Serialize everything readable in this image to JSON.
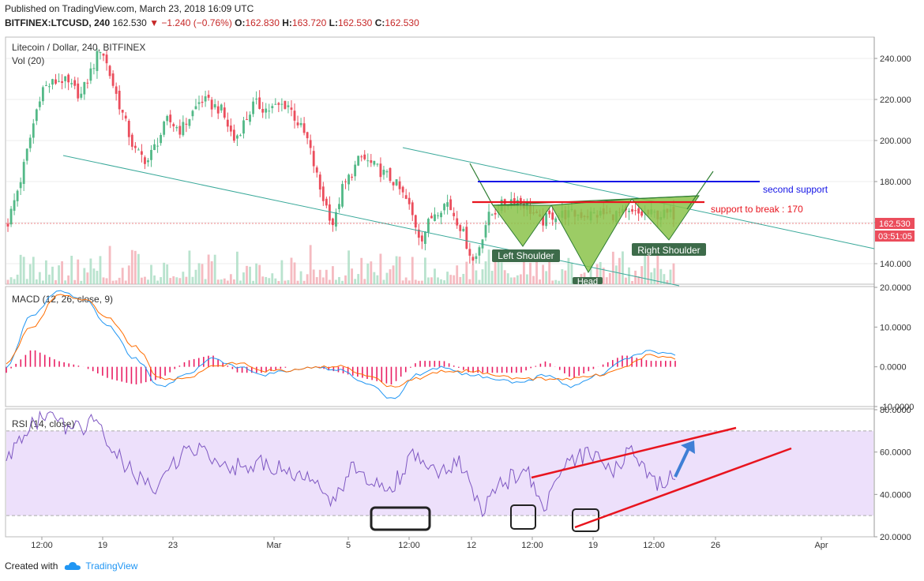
{
  "header": {
    "published": "Published on TradingView.com, March 23, 2018 16:09 UTC",
    "symbol": "BITFINEX:LTCUSD, 240",
    "last": "162.530",
    "change": "▼ −1.240 (−0.76%)",
    "o_label": "O:",
    "o_value": "162.830",
    "h_label": "H:",
    "h_value": "163.720",
    "l_label": "L:",
    "l_value": "162.530",
    "c_label": "C:",
    "c_value": "162.530"
  },
  "footer": {
    "created_with": "Created with",
    "brand": "TradingView"
  },
  "colors": {
    "up": "#53b987",
    "down": "#eb4d5c",
    "macd": "#2196f3",
    "signal": "#ff6d00",
    "hist": "#e91e63",
    "rsi": "#7e57c2",
    "support_red": "#e8141e",
    "support_blue": "#1414e6",
    "channel": "#3aa99a",
    "pattern_fill": "#8bc34a",
    "arrow": "#3f7fd6"
  },
  "chart_data": [
    {
      "type": "candlestick",
      "title": "Litecoin / Dollar, 240, BITFINEX",
      "subtitle": "Vol (20)",
      "ylim": [
        130,
        250
      ],
      "y_ticks": [
        "240.000",
        "220.000",
        "200.000",
        "180.000",
        "160.000",
        "140.000"
      ],
      "price_label": "162.530",
      "countdown": "03:51:05",
      "close_path": [
        [
          0,
          160
        ],
        [
          0.02,
          182
        ],
        [
          0.05,
          225
        ],
        [
          0.08,
          230
        ],
        [
          0.11,
          222
        ],
        [
          0.14,
          246
        ],
        [
          0.16,
          225
        ],
        [
          0.19,
          195
        ],
        [
          0.21,
          190
        ],
        [
          0.24,
          210
        ],
        [
          0.26,
          205
        ],
        [
          0.29,
          220
        ],
        [
          0.32,
          215
        ],
        [
          0.34,
          200
        ],
        [
          0.37,
          218
        ],
        [
          0.39,
          215
        ],
        [
          0.42,
          218
        ],
        [
          0.45,
          200
        ],
        [
          0.47,
          175
        ],
        [
          0.49,
          158
        ],
        [
          0.5,
          175
        ],
        [
          0.53,
          192
        ],
        [
          0.56,
          185
        ],
        [
          0.58,
          180
        ],
        [
          0.6,
          170
        ],
        [
          0.62,
          152
        ],
        [
          0.64,
          165
        ],
        [
          0.66,
          170
        ],
        [
          0.68,
          158
        ],
        [
          0.7,
          140
        ],
        [
          0.72,
          162
        ],
        [
          0.74,
          168
        ],
        [
          0.76,
          172
        ],
        [
          0.78,
          168
        ],
        [
          0.8,
          160
        ],
        [
          0.82,
          164
        ]
      ],
      "annotations": {
        "left_shoulder": "Left Shoulder",
        "head": "Head",
        "right_shoulder": "Right Shoulder",
        "second_support": "second support",
        "support_to_break": "support to break : 170",
        "second_support_level": 180,
        "support_to_break_level": 170
      }
    },
    {
      "type": "line",
      "title": "MACD (12, 26, close, 9)",
      "ylim": [
        -10,
        20
      ],
      "y_ticks": [
        "20.0000",
        "10.0000",
        "0.0000",
        "-10.0000"
      ],
      "series": [
        {
          "values": [
            0,
            13,
            19,
            17,
            10,
            2,
            -5,
            -2,
            2,
            0,
            -2,
            -1,
            0,
            -1,
            -4,
            -8,
            -2,
            0,
            -2,
            -3,
            -4,
            -2,
            -5,
            -2,
            2,
            4,
            3
          ]
        },
        {
          "values": [
            1,
            10,
            18,
            17,
            12,
            5,
            -3,
            -3,
            0,
            1,
            -1,
            -1,
            0,
            0,
            -2,
            -5,
            -3,
            -1,
            -1,
            -2,
            -3,
            -3,
            -3,
            -2,
            0,
            3,
            2
          ]
        }
      ]
    },
    {
      "type": "line",
      "title": "RSI (14, close)",
      "ylim": [
        20,
        80
      ],
      "y_ticks": [
        "80.0000",
        "60.0000",
        "40.0000",
        "20.0000"
      ],
      "bands": [
        30,
        70
      ],
      "series": [
        {
          "values": [
            55,
            72,
            78,
            70,
            74,
            60,
            48,
            42,
            58,
            62,
            55,
            52,
            55,
            50,
            48,
            35,
            52,
            44,
            45,
            60,
            48,
            55,
            32,
            45,
            52,
            35,
            55,
            60,
            50,
            62,
            45,
            50
          ]
        }
      ],
      "x_ticks": [
        "12:00",
        "19",
        "23",
        "Mar",
        "5",
        "12:00",
        "12",
        "12:00",
        "19",
        "12:00",
        "26",
        "Apr"
      ]
    }
  ]
}
